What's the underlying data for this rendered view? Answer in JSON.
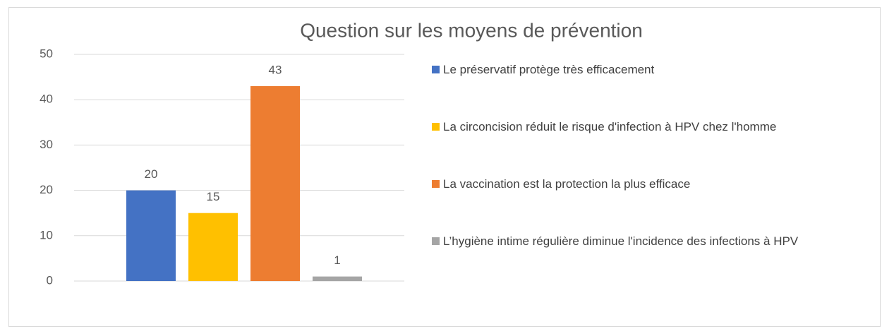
{
  "chart_data": {
    "type": "bar",
    "title": "Question sur les moyens de prévention",
    "categories": [
      null
    ],
    "series": [
      {
        "name": "Le préservatif protège très efficacement",
        "color": "#4472c4",
        "values": [
          20
        ]
      },
      {
        "name": "La circoncision réduit le risque d'infection à HPV chez l'homme",
        "color": "#ffc000",
        "values": [
          15
        ]
      },
      {
        "name": "La vaccination est la protection la plus efficace",
        "color": "#ed7d31",
        "values": [
          43
        ]
      },
      {
        "name": "L’hygiène intime régulière diminue l'incidence des infections à HPV",
        "color": "#a5a5a5",
        "values": [
          1
        ]
      }
    ],
    "ylim": [
      0,
      50
    ],
    "yticks": [
      0,
      10,
      20,
      30,
      40,
      50
    ],
    "grid": true,
    "legend": "right",
    "data_labels": true
  }
}
